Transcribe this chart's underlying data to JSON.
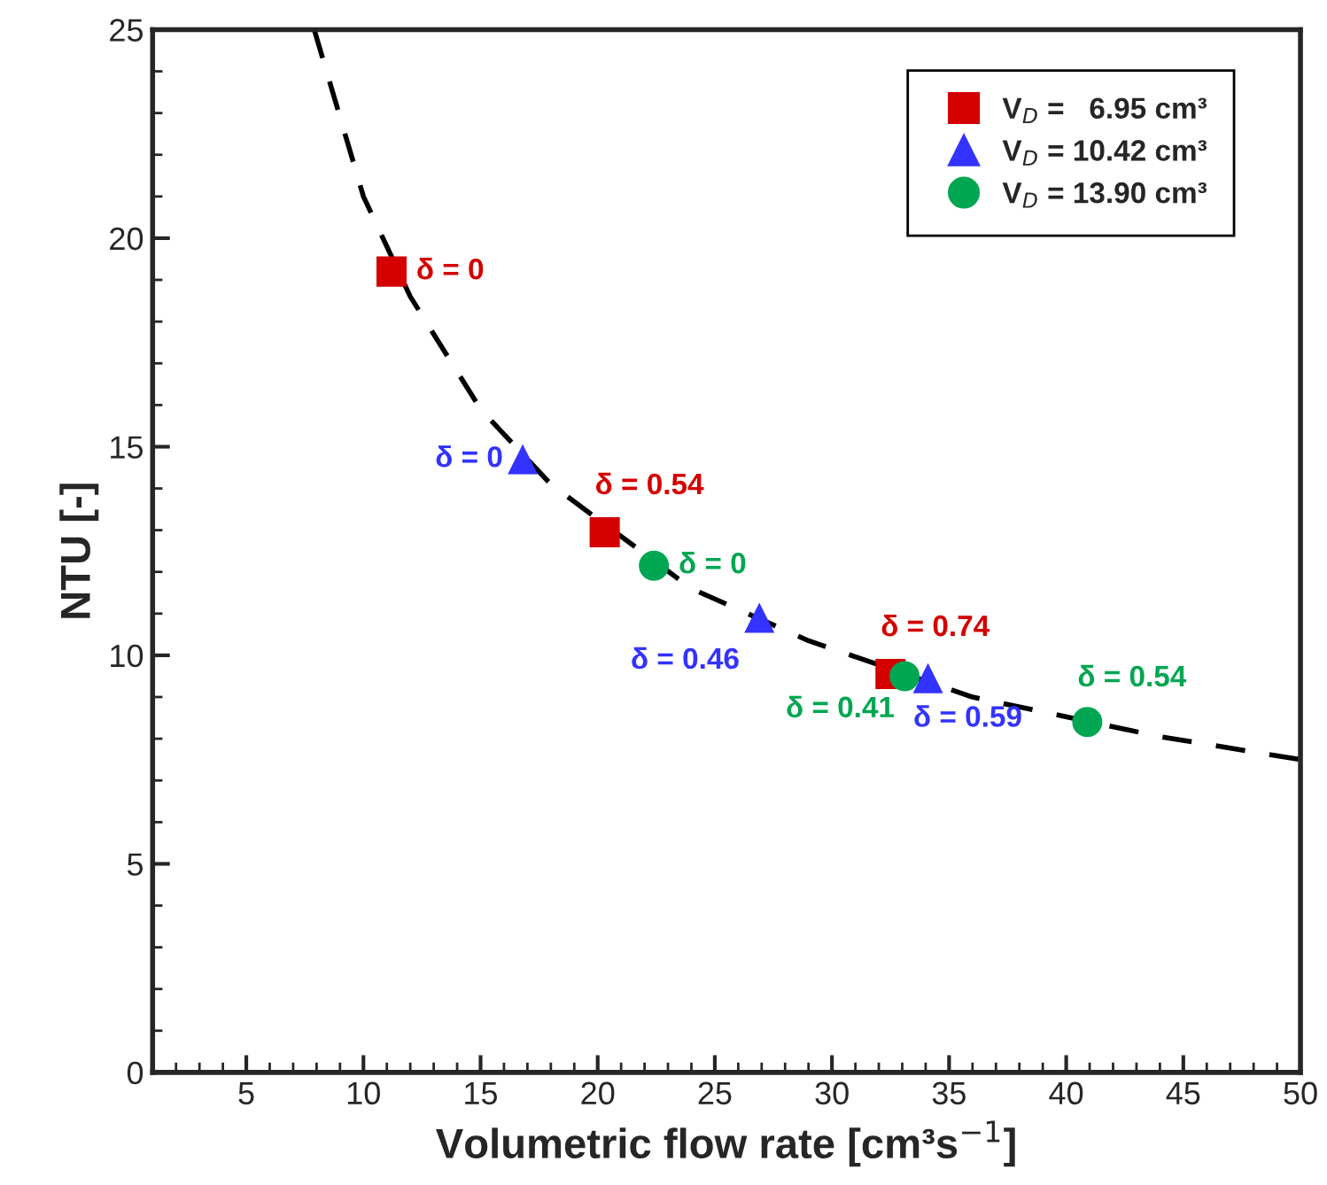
{
  "chart_data": {
    "type": "scatter",
    "xlabel": "Volumetric flow rate [cm³s$^{−1}$]",
    "ylabel": "NTU [-]",
    "xlim": [
      1,
      50
    ],
    "xticks": [
      5,
      10,
      15,
      20,
      25,
      30,
      35,
      40,
      45,
      50
    ],
    "ylim": [
      0,
      25
    ],
    "yticks": [
      0,
      5,
      10,
      15,
      20,
      25
    ],
    "grid": false,
    "legend": "top right",
    "series": [
      {
        "name": "V$_{D}$ =   6.95 cm³",
        "color": "#d40000",
        "marker": "square",
        "x": [
          11.2,
          20.3,
          32.5
        ],
        "values": [
          19.2,
          12.95,
          9.55
        ]
      },
      {
        "name": "V$_{D}$ = 10.42 cm³",
        "color": "#3333ff",
        "marker": "triangle",
        "x": [
          16.8,
          26.9,
          34.1
        ],
        "values": [
          14.7,
          10.9,
          9.45
        ]
      },
      {
        "name": "V$_{D}$ = 13.90 cm³",
        "color": "#00a651",
        "marker": "circle",
        "x": [
          22.4,
          33.1,
          40.9
        ],
        "values": [
          12.15,
          9.5,
          8.4
        ]
      },
      {
        "type": "line",
        "color": "#000000",
        "marker": "none",
        "line_style": "dashed",
        "x": [
          7.9,
          10,
          12,
          15,
          18,
          24,
          29,
          36,
          44,
          50
        ],
        "values": [
          25,
          21,
          18.6,
          15.9,
          14.1,
          11.6,
          10.35,
          9.0,
          8.05,
          7.5
        ]
      }
    ],
    "annotations": [
      {
        "text": "δ = 0",
        "x": 11.2,
        "y": 19.2
      },
      {
        "text": "δ = 0.54",
        "x": 20.3,
        "y": 12.95
      },
      {
        "text": "δ = 0.74",
        "x": 32.5,
        "y": 9.55
      },
      {
        "text": "δ = 0",
        "x": 16.8,
        "y": 14.7
      },
      {
        "text": "δ = 0.46",
        "x": 26.9,
        "y": 10.9
      },
      {
        "text": "δ = 0.59",
        "x": 34.1,
        "y": 9.45
      },
      {
        "text": "δ = 0",
        "x": 22.4,
        "y": 12.15
      },
      {
        "text": "δ = 0.41",
        "x": 33.1,
        "y": 9.5
      },
      {
        "text": "δ = 0.54",
        "x": 40.9,
        "y": 8.4
      }
    ]
  }
}
